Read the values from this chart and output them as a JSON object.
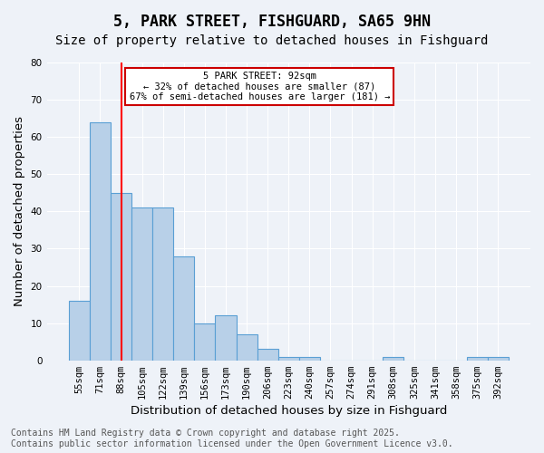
{
  "title": "5, PARK STREET, FISHGUARD, SA65 9HN",
  "subtitle": "Size of property relative to detached houses in Fishguard",
  "xlabel": "Distribution of detached houses by size in Fishguard",
  "ylabel": "Number of detached properties",
  "categories": [
    "55sqm",
    "71sqm",
    "88sqm",
    "105sqm",
    "122sqm",
    "139sqm",
    "156sqm",
    "173sqm",
    "190sqm",
    "206sqm",
    "223sqm",
    "240sqm",
    "257sqm",
    "274sqm",
    "291sqm",
    "308sqm",
    "325sqm",
    "341sqm",
    "358sqm",
    "375sqm",
    "392sqm"
  ],
  "values": [
    16,
    64,
    45,
    41,
    41,
    28,
    10,
    12,
    7,
    3,
    1,
    1,
    0,
    0,
    0,
    1,
    0,
    0,
    0,
    1,
    1
  ],
  "bar_color": "#b8d0e8",
  "bar_edge_color": "#5a9fd4",
  "red_line_index": 2,
  "ylim": [
    0,
    80
  ],
  "yticks": [
    0,
    10,
    20,
    30,
    40,
    50,
    60,
    70,
    80
  ],
  "annotation_text": "5 PARK STREET: 92sqm\n← 32% of detached houses are smaller (87)\n67% of semi-detached houses are larger (181) →",
  "annotation_box_color": "#ffffff",
  "annotation_box_edge": "#cc0000",
  "footer_line1": "Contains HM Land Registry data © Crown copyright and database right 2025.",
  "footer_line2": "Contains public sector information licensed under the Open Government Licence v3.0.",
  "background_color": "#eef2f8",
  "plot_bg_color": "#eef2f8",
  "title_fontsize": 12,
  "subtitle_fontsize": 10,
  "axis_label_fontsize": 9.5,
  "tick_fontsize": 7.5,
  "footer_fontsize": 7
}
